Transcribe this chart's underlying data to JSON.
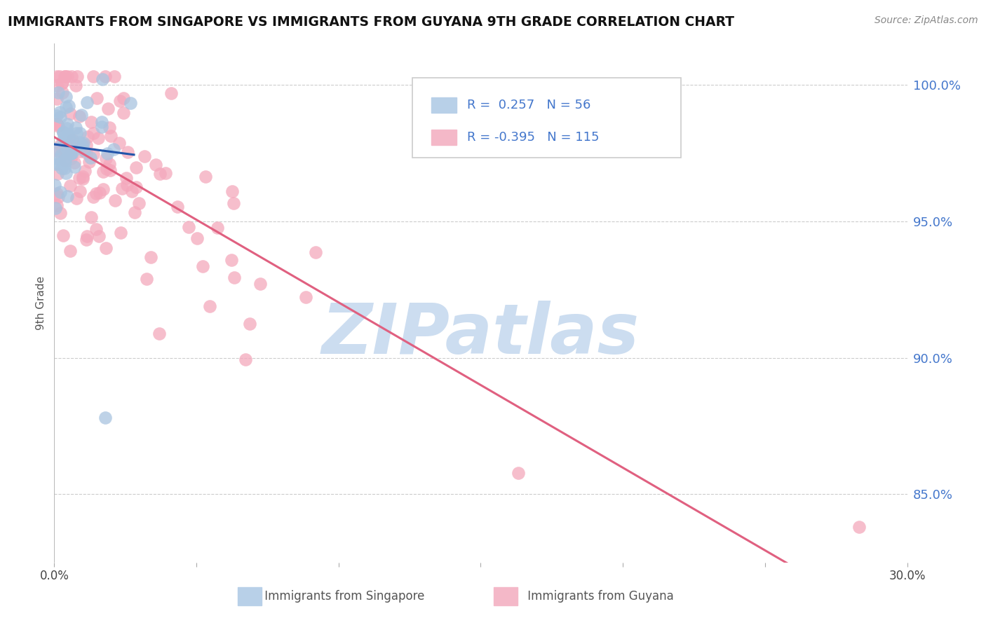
{
  "title": "IMMIGRANTS FROM SINGAPORE VS IMMIGRANTS FROM GUYANA 9TH GRADE CORRELATION CHART",
  "source": "Source: ZipAtlas.com",
  "ylabel": "9th Grade",
  "yticks": [
    0.85,
    0.9,
    0.95,
    1.0
  ],
  "ytick_labels": [
    "85.0%",
    "90.0%",
    "95.0%",
    "100.0%"
  ],
  "xlim": [
    0.0,
    0.3
  ],
  "ylim": [
    0.825,
    1.015
  ],
  "singapore_R": 0.257,
  "singapore_N": 56,
  "guyana_R": -0.395,
  "guyana_N": 115,
  "singapore_color": "#a8c4e0",
  "guyana_color": "#f4a8bc",
  "singapore_trend_color": "#2255aa",
  "guyana_trend_color": "#e06080",
  "watermark_text": "ZIPatlas",
  "watermark_color": "#ccddf0",
  "legend_fill_singapore": "#b8d0e8",
  "legend_fill_guyana": "#f4b8c8",
  "legend_text_color": "#4477cc",
  "legend_label_color": "#333333"
}
